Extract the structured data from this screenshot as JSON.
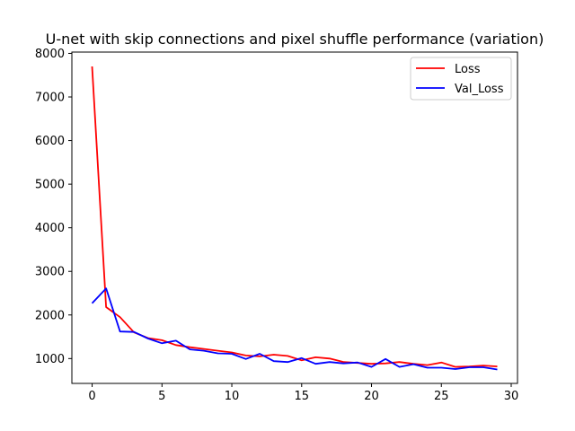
{
  "chart_data": {
    "type": "line",
    "title": "U-net with skip connections and pixel shuffle performance (variation)",
    "xlabel": "",
    "ylabel": "",
    "xlim": [
      -1.45,
      30.45
    ],
    "ylim": [
      430,
      8030
    ],
    "xticks": [
      0,
      5,
      10,
      15,
      20,
      25,
      30
    ],
    "yticks": [
      1000,
      2000,
      3000,
      4000,
      5000,
      6000,
      7000,
      8000
    ],
    "grid": false,
    "legend_position": "top-right",
    "x": [
      0,
      1,
      2,
      3,
      4,
      5,
      6,
      7,
      8,
      9,
      10,
      11,
      12,
      13,
      14,
      15,
      16,
      17,
      18,
      19,
      20,
      21,
      22,
      23,
      24,
      25,
      26,
      27,
      28,
      29
    ],
    "series": [
      {
        "name": "Loss",
        "color": "#ff0000",
        "values": [
          7700,
          2180,
          1950,
          1600,
          1470,
          1420,
          1310,
          1260,
          1220,
          1180,
          1140,
          1070,
          1050,
          1090,
          1060,
          960,
          1030,
          1000,
          920,
          900,
          880,
          890,
          920,
          880,
          850,
          910,
          810,
          820,
          840,
          820
        ]
      },
      {
        "name": "Val_Loss",
        "color": "#0000ff",
        "values": [
          2270,
          2610,
          1620,
          1610,
          1460,
          1350,
          1410,
          1210,
          1180,
          1120,
          1110,
          990,
          1110,
          940,
          920,
          1010,
          880,
          920,
          890,
          910,
          810,
          990,
          810,
          870,
          790,
          790,
          760,
          800,
          800,
          750
        ]
      }
    ]
  }
}
